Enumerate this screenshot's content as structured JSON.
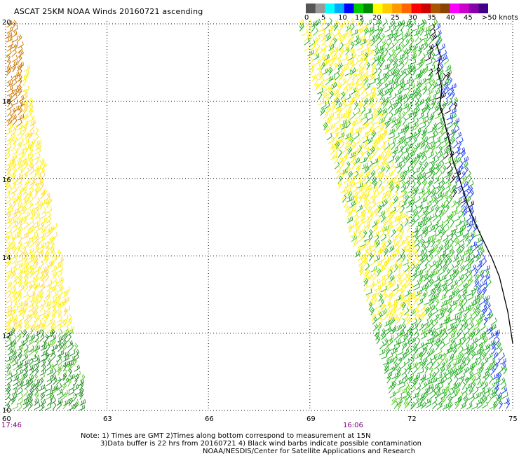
{
  "title": "ASCAT 25KM NOAA Winds 20160721 ascending",
  "colorbar": {
    "labels": [
      "0",
      "5",
      "10",
      "15",
      "20",
      "25",
      "30",
      "35",
      "40",
      "45",
      ">50 knots"
    ],
    "colors": [
      "#555555",
      "#999999",
      "#00ffff",
      "#00aaff",
      "#0000ff",
      "#00cc00",
      "#008800",
      "#ffff00",
      "#ffcc00",
      "#ff9900",
      "#ff6600",
      "#ff0000",
      "#cc0000",
      "#aa5500",
      "#884400",
      "#ff00ff",
      "#cc00cc",
      "#8800aa",
      "#440088"
    ]
  },
  "map": {
    "lon_range": [
      60,
      75
    ],
    "lat_range": [
      10,
      20
    ],
    "lon_ticks": [
      "60",
      "63",
      "66",
      "69",
      "72",
      "75"
    ],
    "lat_ticks": [
      "20",
      "18",
      "16",
      "14",
      "12",
      "10"
    ],
    "grid": "dotted",
    "swaths": [
      {
        "time": "17:46",
        "side": "left",
        "dominant_speed_colors": [
          "#ffee00",
          "#cc7700",
          "#228b22"
        ]
      },
      {
        "time": "16:06",
        "side": "right",
        "dominant_speed_colors": [
          "#22aa22",
          "#ffee00",
          "#2244ee"
        ]
      }
    ]
  },
  "footer": {
    "line1": "Note: 1) Times are GMT 2)Times along bottom correspond to measurement at 15N",
    "line2": "3)Data buffer is 22 hrs from 20160721 4) Black wind barbs indicate possible contamination",
    "line3": "NOAA/NESDIS/Center for Satellite Applications and Research"
  }
}
